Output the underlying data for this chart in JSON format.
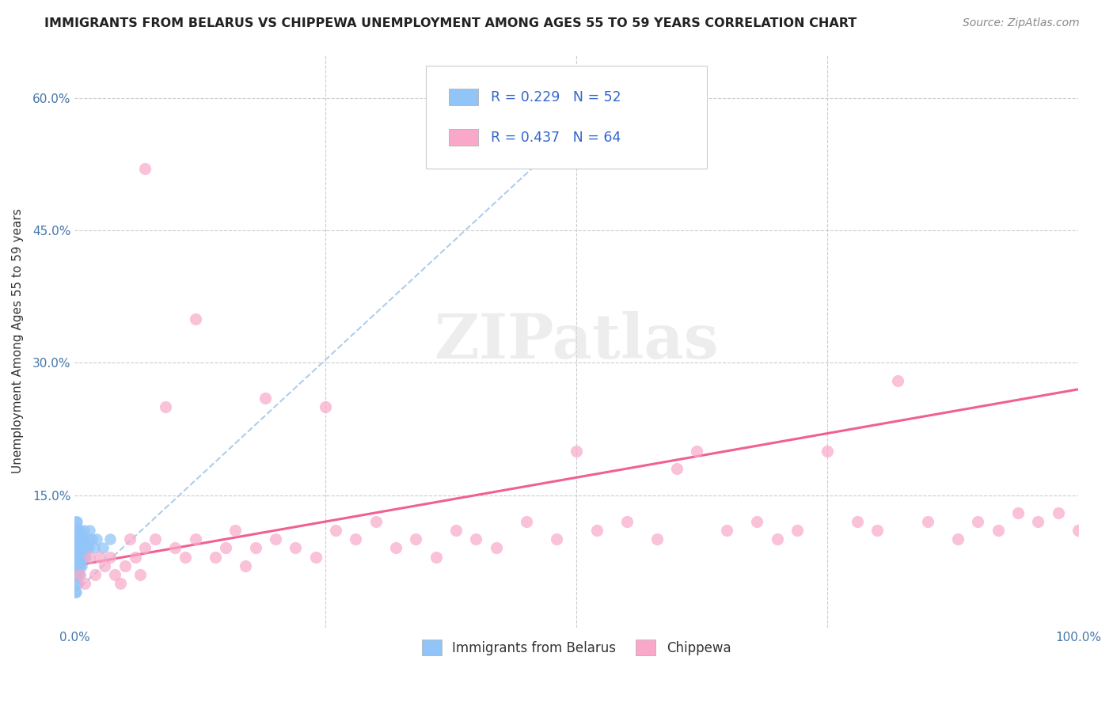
{
  "title": "IMMIGRANTS FROM BELARUS VS CHIPPEWA UNEMPLOYMENT AMONG AGES 55 TO 59 YEARS CORRELATION CHART",
  "source": "Source: ZipAtlas.com",
  "ylabel": "Unemployment Among Ages 55 to 59 years",
  "watermark": "ZIPatlas",
  "xlim": [
    0,
    1.0
  ],
  "ylim": [
    0,
    0.65
  ],
  "yticks": [
    0.0,
    0.15,
    0.3,
    0.45,
    0.6
  ],
  "yticklabels": [
    "",
    "15.0%",
    "30.0%",
    "45.0%",
    "60.0%"
  ],
  "legend_label1": "Immigrants from Belarus",
  "legend_label2": "Chippewa",
  "R1": 0.229,
  "N1": 52,
  "R2": 0.437,
  "N2": 64,
  "color1": "#92C5F7",
  "color2": "#F9A8C9",
  "trend_color1": "#A8C8E8",
  "trend_color2": "#F06090",
  "belarus_x": [
    0.0005,
    0.0005,
    0.0005,
    0.0005,
    0.001,
    0.001,
    0.001,
    0.001,
    0.001,
    0.001,
    0.0015,
    0.0015,
    0.0015,
    0.0015,
    0.002,
    0.002,
    0.002,
    0.002,
    0.002,
    0.0025,
    0.0025,
    0.003,
    0.003,
    0.003,
    0.003,
    0.0035,
    0.0035,
    0.004,
    0.004,
    0.004,
    0.005,
    0.005,
    0.005,
    0.006,
    0.006,
    0.007,
    0.007,
    0.008,
    0.008,
    0.009,
    0.009,
    0.01,
    0.011,
    0.012,
    0.013,
    0.014,
    0.015,
    0.017,
    0.019,
    0.022,
    0.028,
    0.035
  ],
  "belarus_y": [
    0.04,
    0.06,
    0.08,
    0.1,
    0.04,
    0.06,
    0.08,
    0.09,
    0.1,
    0.12,
    0.05,
    0.07,
    0.09,
    0.11,
    0.06,
    0.08,
    0.09,
    0.1,
    0.12,
    0.07,
    0.09,
    0.05,
    0.07,
    0.09,
    0.11,
    0.08,
    0.1,
    0.06,
    0.08,
    0.1,
    0.07,
    0.09,
    0.11,
    0.08,
    0.1,
    0.07,
    0.09,
    0.08,
    0.1,
    0.09,
    0.11,
    0.1,
    0.08,
    0.09,
    0.1,
    0.09,
    0.11,
    0.1,
    0.09,
    0.1,
    0.09,
    0.1
  ],
  "chippewa_x": [
    0.005,
    0.01,
    0.015,
    0.02,
    0.025,
    0.03,
    0.035,
    0.04,
    0.045,
    0.05,
    0.055,
    0.06,
    0.065,
    0.07,
    0.08,
    0.09,
    0.1,
    0.11,
    0.12,
    0.14,
    0.15,
    0.16,
    0.17,
    0.18,
    0.2,
    0.22,
    0.24,
    0.26,
    0.28,
    0.3,
    0.32,
    0.34,
    0.36,
    0.38,
    0.4,
    0.42,
    0.45,
    0.48,
    0.5,
    0.52,
    0.55,
    0.58,
    0.6,
    0.62,
    0.65,
    0.68,
    0.7,
    0.72,
    0.75,
    0.78,
    0.8,
    0.82,
    0.85,
    0.88,
    0.9,
    0.92,
    0.94,
    0.96,
    0.98,
    1.0,
    0.07,
    0.12,
    0.19,
    0.25
  ],
  "chippewa_y": [
    0.06,
    0.05,
    0.08,
    0.06,
    0.08,
    0.07,
    0.08,
    0.06,
    0.05,
    0.07,
    0.1,
    0.08,
    0.06,
    0.09,
    0.1,
    0.25,
    0.09,
    0.08,
    0.1,
    0.08,
    0.09,
    0.11,
    0.07,
    0.09,
    0.1,
    0.09,
    0.08,
    0.11,
    0.1,
    0.12,
    0.09,
    0.1,
    0.08,
    0.11,
    0.1,
    0.09,
    0.12,
    0.1,
    0.2,
    0.11,
    0.12,
    0.1,
    0.18,
    0.2,
    0.11,
    0.12,
    0.1,
    0.11,
    0.2,
    0.12,
    0.11,
    0.28,
    0.12,
    0.1,
    0.12,
    0.11,
    0.13,
    0.12,
    0.13,
    0.11,
    0.52,
    0.35,
    0.26,
    0.25
  ],
  "chippewa_trend_start_y": 0.07,
  "chippewa_trend_end_y": 0.27,
  "belarus_trend_start_x": 0.0,
  "belarus_trend_start_y": 0.04,
  "belarus_trend_end_x": 0.55,
  "belarus_trend_end_y": 0.62
}
